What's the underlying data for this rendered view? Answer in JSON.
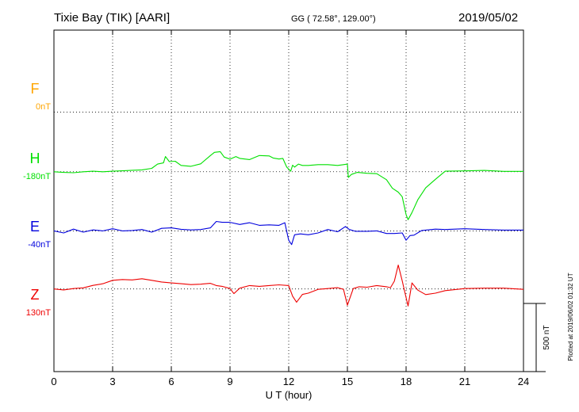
{
  "header": {
    "station": "Tixie Bay (TIK)  [AARI]",
    "coords": "GG ( 72.58°, 129.00°)",
    "date": "2019/05/02"
  },
  "side_note": "Plotted at 2019/06/02 01:32 UT",
  "scale_label": "500 nT",
  "chart_data": {
    "type": "line",
    "xlabel": "U T (hour)",
    "xlim": [
      0,
      24
    ],
    "xticks": [
      0,
      3,
      6,
      9,
      12,
      15,
      18,
      21,
      24
    ],
    "ylim": [
      -1900,
      600
    ],
    "grid": true,
    "series": [
      {
        "name": "F",
        "baseline_label": "0nT",
        "color": "#ffa500",
        "baseline": 0,
        "values": []
      },
      {
        "name": "H",
        "baseline_label": "-180nT",
        "color": "#00e000",
        "baseline": -437,
        "x": [
          0,
          0.5,
          1,
          1.5,
          2,
          2.5,
          3,
          3.5,
          4,
          4.5,
          5,
          5.3,
          5.6,
          5.7,
          5.9,
          6.2,
          6.5,
          7,
          7.5,
          8,
          8.2,
          8.5,
          8.7,
          9,
          9.3,
          9.5,
          10,
          10.5,
          11,
          11.2,
          11.5,
          11.7,
          11.9,
          12.1,
          12.2,
          12.3,
          12.5,
          12.7,
          13,
          13.5,
          14,
          14.5,
          14.8,
          15,
          15.05,
          15.2,
          15.5,
          16,
          16.5,
          17,
          17.3,
          17.6,
          17.8,
          18,
          18.1,
          18.3,
          18.6,
          19,
          19.5,
          20,
          21,
          22,
          23,
          24
        ],
        "values": [
          -437,
          -442,
          -444,
          -437,
          -433,
          -437,
          -433,
          -430,
          -426,
          -423,
          -412,
          -381,
          -372,
          -326,
          -363,
          -360,
          -391,
          -397,
          -379,
          -318,
          -295,
          -290,
          -329,
          -345,
          -326,
          -339,
          -348,
          -318,
          -321,
          -336,
          -344,
          -339,
          -403,
          -433,
          -389,
          -403,
          -381,
          -391,
          -391,
          -385,
          -385,
          -391,
          -385,
          -381,
          -479,
          -457,
          -442,
          -448,
          -451,
          -495,
          -558,
          -586,
          -620,
          -751,
          -788,
          -736,
          -642,
          -555,
          -492,
          -433,
          -431,
          -427,
          -434,
          -434
        ]
      },
      {
        "name": "E",
        "baseline_label": "-40nT",
        "color": "#0000dd",
        "baseline": -870,
        "x": [
          0,
          0.5,
          1,
          1.5,
          2,
          2.5,
          3,
          3.5,
          4,
          4.5,
          5,
          5.5,
          6,
          6.5,
          7,
          7.5,
          8,
          8.3,
          8.6,
          9,
          9.5,
          10,
          10.5,
          11,
          11.5,
          11.8,
          12,
          12.15,
          12.3,
          12.6,
          13,
          13.5,
          14,
          14.5,
          14.9,
          15.1,
          15.4,
          16,
          16.5,
          17,
          17.4,
          17.8,
          18,
          18.2,
          18.4,
          18.8,
          19.5,
          20,
          21,
          22,
          23,
          24
        ],
        "values": [
          -870,
          -885,
          -857,
          -879,
          -863,
          -870,
          -854,
          -870,
          -867,
          -860,
          -879,
          -851,
          -848,
          -858,
          -863,
          -860,
          -848,
          -801,
          -807,
          -807,
          -823,
          -810,
          -829,
          -826,
          -829,
          -810,
          -938,
          -970,
          -898,
          -892,
          -898,
          -885,
          -860,
          -876,
          -838,
          -860,
          -873,
          -873,
          -870,
          -889,
          -889,
          -885,
          -938,
          -904,
          -901,
          -867,
          -857,
          -860,
          -854,
          -860,
          -864,
          -864
        ]
      },
      {
        "name": "Z",
        "baseline_label": "130nT",
        "color": "#ee0000",
        "baseline": -1295,
        "x": [
          0,
          0.5,
          1,
          1.5,
          2,
          2.5,
          3,
          3.5,
          4,
          4.5,
          5,
          5.5,
          6,
          6.5,
          7,
          7.5,
          8,
          8.3,
          8.6,
          9,
          9.2,
          9.5,
          10,
          10.5,
          11,
          11.5,
          12,
          12.2,
          12.4,
          12.7,
          13,
          13.5,
          14,
          14.5,
          14.8,
          15,
          15.1,
          15.3,
          15.6,
          16,
          16.5,
          17,
          17.2,
          17.4,
          17.6,
          17.8,
          18,
          18.1,
          18.3,
          18.6,
          19,
          19.5,
          20,
          21,
          22,
          23,
          24
        ],
        "values": [
          -1295,
          -1302,
          -1292,
          -1287,
          -1269,
          -1257,
          -1232,
          -1226,
          -1229,
          -1220,
          -1232,
          -1244,
          -1251,
          -1257,
          -1263,
          -1260,
          -1254,
          -1270,
          -1276,
          -1292,
          -1329,
          -1289,
          -1270,
          -1276,
          -1270,
          -1265,
          -1270,
          -1348,
          -1392,
          -1335,
          -1326,
          -1298,
          -1292,
          -1286,
          -1298,
          -1414,
          -1373,
          -1292,
          -1279,
          -1282,
          -1270,
          -1279,
          -1286,
          -1238,
          -1120,
          -1235,
          -1358,
          -1420,
          -1251,
          -1304,
          -1336,
          -1326,
          -1307,
          -1292,
          -1289,
          -1289,
          -1298
        ]
      }
    ]
  }
}
